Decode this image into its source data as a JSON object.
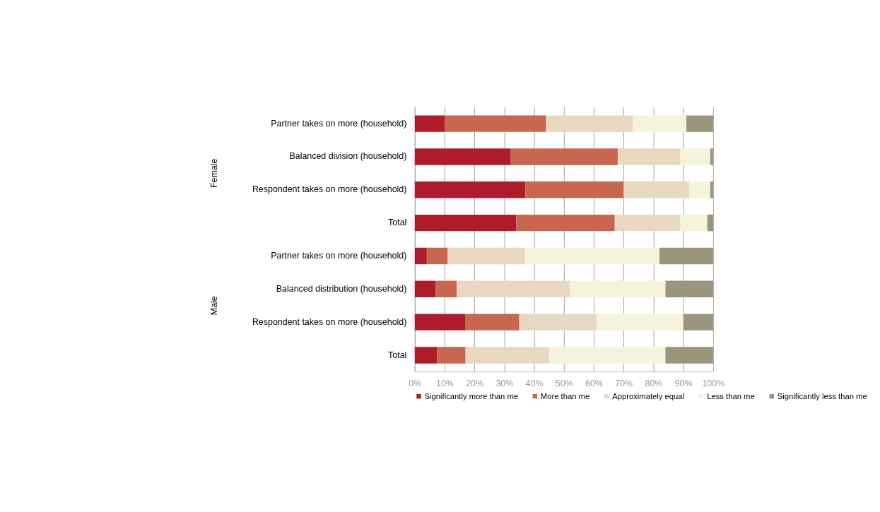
{
  "chart_data": {
    "type": "bar",
    "orientation": "horizontal",
    "stacked": true,
    "categories": [
      "Partner takes on more (household)",
      "Balanced division (household)",
      "Respondent takes on more (household)",
      "Total",
      "Partner takes on more (household)",
      "Balanced distribution (household)",
      "Respondent takes on more (household)",
      "Total"
    ],
    "series": [
      {
        "name": "Significantly more than me",
        "color": "#ae1c2c",
        "values": [
          10,
          32,
          37,
          34,
          4,
          7,
          17,
          7.5
        ]
      },
      {
        "name": "More than me",
        "color": "#c8674f",
        "values": [
          34,
          36,
          33,
          33,
          7,
          7,
          18,
          9.5
        ]
      },
      {
        "name": "Approximately equal",
        "color": "#e8d7c1",
        "values": [
          29,
          21,
          22,
          22,
          26,
          38,
          26,
          28
        ]
      },
      {
        "name": "Less than me",
        "color": "#f6f3dc",
        "values": [
          18,
          10,
          7,
          9,
          45,
          32,
          29,
          39
        ]
      },
      {
        "name": "Significantly less than me",
        "color": "#9b957b",
        "values": [
          9,
          1,
          1,
          2,
          18,
          16,
          10,
          16
        ]
      }
    ],
    "xlim": [
      0,
      100
    ],
    "xticks": [
      {
        "value": 0,
        "label": "0%"
      },
      {
        "value": 10,
        "label": "10%"
      },
      {
        "value": 20,
        "label": "20%"
      },
      {
        "value": 30,
        "label": "30%"
      },
      {
        "value": 40,
        "label": "40%"
      },
      {
        "value": 50,
        "label": "50%"
      },
      {
        "value": 60,
        "label": "60%"
      },
      {
        "value": 70,
        "label": "70%"
      },
      {
        "value": 80,
        "label": "80%"
      },
      {
        "value": 90,
        "label": "90%"
      },
      {
        "value": 100,
        "label": "100%"
      }
    ],
    "grid": "x",
    "legend": "bottom",
    "annotations": [
      "Female",
      "Male"
    ]
  }
}
